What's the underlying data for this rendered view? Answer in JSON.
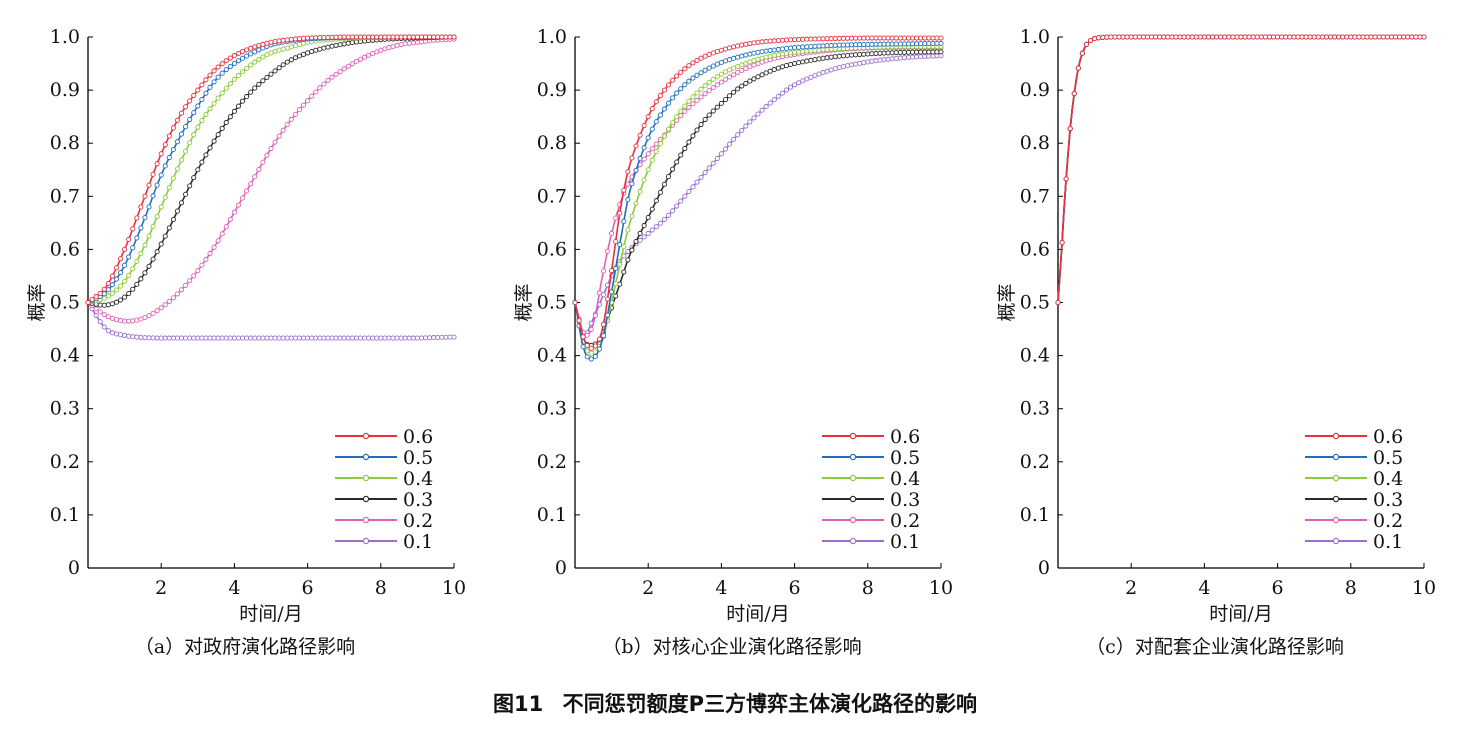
{
  "figure": {
    "number": "图11",
    "title": "不同惩罚额度P三方博弈主体演化路径的影响"
  },
  "colors": {
    "0.6": "#e8303f",
    "0.5": "#1f6fbf",
    "0.4": "#8ccb3a",
    "0.3": "#2b2b2b",
    "0.2": "#e060b8",
    "0.1": "#9a6fd0"
  },
  "chart_data": [
    {
      "type": "line",
      "caption": "（a）对政府演化路径影响",
      "xlabel": "时间/月",
      "ylabel": "概率",
      "xlim": [
        0,
        10
      ],
      "ylim": [
        0,
        1.0
      ],
      "xticks": [
        2,
        4,
        6,
        8,
        10
      ],
      "yticks": [
        0,
        0.1,
        0.2,
        0.3,
        0.4,
        0.5,
        0.6,
        0.7,
        0.8,
        0.9,
        1.0
      ],
      "ytick_labels": [
        "0",
        "0.1",
        "0.2",
        "0.3",
        "0.4",
        "0.5",
        "0.6",
        "0.7",
        "0.8",
        "0.9",
        "1.0"
      ],
      "legend_position": "bottom-right",
      "x": [
        0,
        0.5,
        1,
        1.5,
        2,
        2.5,
        3,
        3.5,
        4,
        4.5,
        5,
        5.5,
        6,
        6.5,
        7,
        7.5,
        8,
        8.5,
        9,
        9.5,
        10
      ],
      "series": [
        {
          "name": "0.6",
          "values": [
            0.5,
            0.53,
            0.6,
            0.69,
            0.78,
            0.85,
            0.9,
            0.94,
            0.965,
            0.98,
            0.99,
            0.995,
            0.998,
            0.999,
            1.0,
            1.0,
            1.0,
            1.0,
            1.0,
            1.0,
            1.0
          ]
        },
        {
          "name": "0.5",
          "values": [
            0.5,
            0.52,
            0.57,
            0.65,
            0.74,
            0.81,
            0.87,
            0.92,
            0.95,
            0.97,
            0.985,
            0.992,
            0.996,
            0.998,
            0.999,
            1.0,
            1.0,
            1.0,
            1.0,
            1.0,
            1.0
          ]
        },
        {
          "name": "0.4",
          "values": [
            0.5,
            0.51,
            0.54,
            0.6,
            0.68,
            0.76,
            0.83,
            0.88,
            0.92,
            0.95,
            0.97,
            0.98,
            0.99,
            0.994,
            0.997,
            0.998,
            0.999,
            1.0,
            1.0,
            1.0,
            1.0
          ]
        },
        {
          "name": "0.3",
          "values": [
            0.5,
            0.495,
            0.51,
            0.55,
            0.61,
            0.68,
            0.75,
            0.81,
            0.86,
            0.9,
            0.93,
            0.955,
            0.97,
            0.98,
            0.987,
            0.992,
            0.995,
            0.997,
            0.998,
            0.999,
            1.0
          ]
        },
        {
          "name": "0.2",
          "values": [
            0.5,
            0.475,
            0.465,
            0.47,
            0.49,
            0.52,
            0.56,
            0.61,
            0.67,
            0.73,
            0.79,
            0.84,
            0.88,
            0.915,
            0.94,
            0.96,
            0.975,
            0.985,
            0.99,
            0.994,
            0.996
          ]
        },
        {
          "name": "0.1",
          "values": [
            0.5,
            0.45,
            0.438,
            0.434,
            0.433,
            0.433,
            0.433,
            0.433,
            0.433,
            0.433,
            0.433,
            0.433,
            0.433,
            0.433,
            0.433,
            0.433,
            0.433,
            0.433,
            0.433,
            0.434,
            0.435
          ]
        }
      ]
    },
    {
      "type": "line",
      "caption": "（b）对核心企业演化路径影响",
      "xlabel": "时间/月",
      "ylabel": "概率",
      "xlim": [
        0,
        10
      ],
      "ylim": [
        0,
        1.0
      ],
      "xticks": [
        2,
        4,
        6,
        8,
        10
      ],
      "yticks": [
        0,
        0.1,
        0.2,
        0.3,
        0.4,
        0.5,
        0.6,
        0.7,
        0.8,
        0.9,
        1.0
      ],
      "ytick_labels": [
        "0",
        "0.1",
        "0.2",
        "0.3",
        "0.4",
        "0.5",
        "0.6",
        "0.7",
        "0.8",
        "0.9",
        "1.0"
      ],
      "legend_position": "bottom-right",
      "x": [
        0,
        0.25,
        0.5,
        0.75,
        1,
        1.25,
        1.5,
        2,
        2.5,
        3,
        3.5,
        4,
        4.5,
        5,
        5.5,
        6,
        7,
        8,
        9,
        10
      ],
      "series": [
        {
          "name": "0.6",
          "values": [
            0.5,
            0.43,
            0.415,
            0.45,
            0.56,
            0.68,
            0.76,
            0.85,
            0.905,
            0.94,
            0.962,
            0.975,
            0.984,
            0.99,
            0.993,
            0.995,
            0.997,
            0.998,
            0.998,
            0.998
          ]
        },
        {
          "name": "0.5",
          "values": [
            0.5,
            0.41,
            0.395,
            0.43,
            0.52,
            0.62,
            0.71,
            0.81,
            0.87,
            0.91,
            0.935,
            0.952,
            0.963,
            0.971,
            0.976,
            0.98,
            0.984,
            0.986,
            0.987,
            0.988
          ]
        },
        {
          "name": "0.4",
          "values": [
            0.5,
            0.42,
            0.405,
            0.43,
            0.5,
            0.58,
            0.65,
            0.75,
            0.82,
            0.87,
            0.905,
            0.93,
            0.946,
            0.958,
            0.966,
            0.971,
            0.977,
            0.98,
            0.982,
            0.982
          ]
        },
        {
          "name": "0.3",
          "values": [
            0.5,
            0.43,
            0.42,
            0.44,
            0.49,
            0.54,
            0.59,
            0.66,
            0.73,
            0.79,
            0.84,
            0.875,
            0.905,
            0.925,
            0.94,
            0.95,
            0.962,
            0.968,
            0.971,
            0.972
          ]
        },
        {
          "name": "0.2",
          "values": [
            0.5,
            0.44,
            0.46,
            0.55,
            0.63,
            0.69,
            0.73,
            0.78,
            0.82,
            0.86,
            0.89,
            0.915,
            0.935,
            0.95,
            0.96,
            0.967,
            0.975,
            0.979,
            0.98,
            0.98
          ]
        },
        {
          "name": "0.1",
          "values": [
            0.5,
            0.44,
            0.47,
            0.51,
            0.55,
            0.58,
            0.6,
            0.63,
            0.66,
            0.7,
            0.74,
            0.78,
            0.82,
            0.855,
            0.885,
            0.91,
            0.938,
            0.953,
            0.961,
            0.965
          ]
        }
      ]
    },
    {
      "type": "line",
      "caption": "（c）对配套企业演化路径影响",
      "xlabel": "时间/月",
      "ylabel": "概率",
      "xlim": [
        0,
        10
      ],
      "ylim": [
        0,
        1.0
      ],
      "xticks": [
        2,
        4,
        6,
        8,
        10
      ],
      "yticks": [
        0,
        0.1,
        0.2,
        0.3,
        0.4,
        0.5,
        0.6,
        0.7,
        0.8,
        0.9,
        1.0
      ],
      "ytick_labels": [
        "0",
        "0.1",
        "0.2",
        "0.3",
        "0.4",
        "0.5",
        "0.6",
        "0.7",
        "0.8",
        "0.9",
        "1.0"
      ],
      "legend_position": "bottom-right",
      "x": [
        0,
        0.05,
        0.1,
        0.15,
        0.2,
        0.25,
        0.3,
        0.35,
        0.4,
        0.5,
        0.6,
        0.7,
        0.8,
        1,
        1.5,
        2,
        3,
        4,
        5,
        6,
        7,
        8,
        9,
        10
      ],
      "series": [
        {
          "name": "0.6",
          "values": [
            0.5,
            0.55,
            0.6,
            0.66,
            0.71,
            0.76,
            0.8,
            0.84,
            0.87,
            0.92,
            0.955,
            0.975,
            0.988,
            0.997,
            1.0,
            1.0,
            1.0,
            1.0,
            1.0,
            1.0,
            1.0,
            1.0,
            1.0,
            1.0
          ]
        },
        {
          "name": "0.5",
          "values": [
            0.5,
            0.55,
            0.6,
            0.66,
            0.71,
            0.76,
            0.8,
            0.84,
            0.87,
            0.92,
            0.955,
            0.975,
            0.988,
            0.997,
            1.0,
            1.0,
            1.0,
            1.0,
            1.0,
            1.0,
            1.0,
            1.0,
            1.0,
            1.0
          ]
        },
        {
          "name": "0.4",
          "values": [
            0.5,
            0.55,
            0.6,
            0.66,
            0.71,
            0.76,
            0.8,
            0.84,
            0.87,
            0.92,
            0.955,
            0.975,
            0.988,
            0.997,
            1.0,
            1.0,
            1.0,
            1.0,
            1.0,
            1.0,
            1.0,
            1.0,
            1.0,
            1.0
          ]
        },
        {
          "name": "0.3",
          "values": [
            0.5,
            0.55,
            0.6,
            0.66,
            0.71,
            0.76,
            0.8,
            0.84,
            0.87,
            0.92,
            0.955,
            0.975,
            0.988,
            0.997,
            1.0,
            1.0,
            1.0,
            1.0,
            1.0,
            1.0,
            1.0,
            1.0,
            1.0,
            1.0
          ]
        },
        {
          "name": "0.2",
          "values": [
            0.5,
            0.55,
            0.6,
            0.66,
            0.71,
            0.76,
            0.8,
            0.84,
            0.87,
            0.92,
            0.955,
            0.975,
            0.988,
            0.997,
            1.0,
            1.0,
            1.0,
            1.0,
            1.0,
            1.0,
            1.0,
            1.0,
            1.0,
            1.0
          ]
        },
        {
          "name": "0.1",
          "values": [
            0.5,
            0.55,
            0.6,
            0.66,
            0.71,
            0.76,
            0.8,
            0.84,
            0.87,
            0.92,
            0.955,
            0.975,
            0.988,
            0.997,
            1.0,
            1.0,
            1.0,
            1.0,
            1.0,
            1.0,
            1.0,
            1.0,
            1.0,
            1.0
          ]
        }
      ]
    }
  ]
}
